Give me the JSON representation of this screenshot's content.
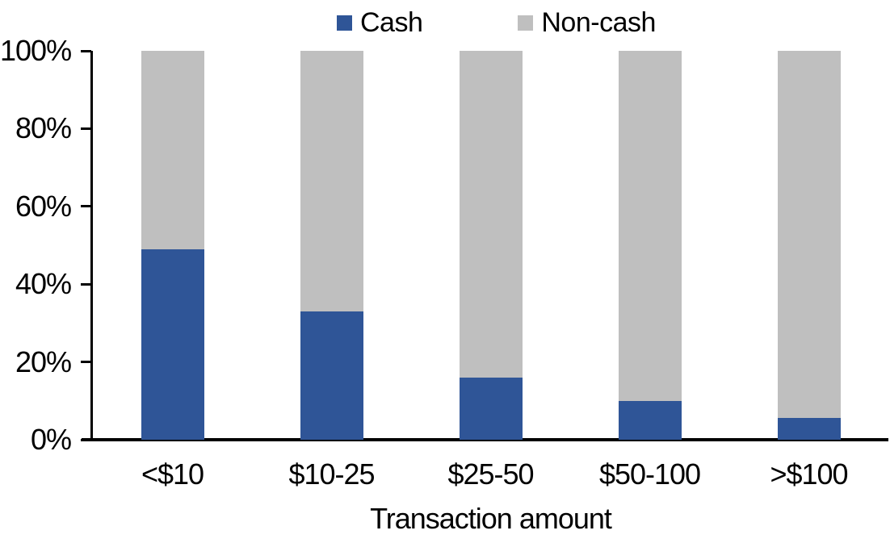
{
  "chart_data": {
    "type": "bar",
    "stacked": true,
    "stack_mode": "percent",
    "title": "",
    "xlabel": "Transaction amount",
    "ylabel": "",
    "categories": [
      "<$10",
      "$10-25",
      "$25-50",
      "$50-100",
      ">$100"
    ],
    "series": [
      {
        "name": "Cash",
        "color": "#2F5597",
        "values": [
          49,
          33,
          16,
          10,
          5.5
        ]
      },
      {
        "name": "Non-cash",
        "color": "#BFBFBF",
        "values": [
          51,
          67,
          84,
          90,
          94.5
        ]
      }
    ],
    "y_ticks": [
      "0%",
      "20%",
      "40%",
      "60%",
      "80%",
      "100%"
    ],
    "ylim": [
      0,
      100
    ],
    "grid": false,
    "legend_position": "top-center"
  },
  "colors": {
    "cash": "#2F5597",
    "noncash": "#BFBFBF",
    "axis": "#000000",
    "text": "#000000",
    "background": "#FFFFFF"
  }
}
